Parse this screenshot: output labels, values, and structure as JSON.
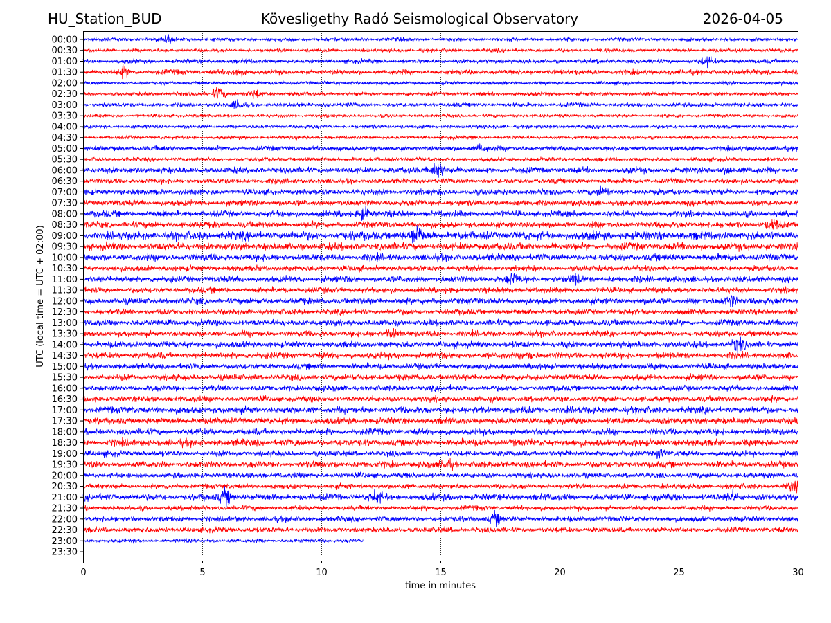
{
  "header": {
    "station": "HU_Station_BUD",
    "observatory": "Kövesligethy Radó Seismological Observatory",
    "date": "2026-04-05"
  },
  "chart_data": {
    "type": "line",
    "title": "Kövesligethy Radó Seismological Observatory",
    "xlabel": "time in minutes",
    "ylabel": "UTC (local time = UTC + 02:00)",
    "xlim": [
      0,
      30
    ],
    "xticks": [
      0,
      5,
      10,
      15,
      20,
      25,
      30
    ],
    "grid": "vertical dotted at x ticks",
    "colors": [
      "#0000ff",
      "#ff0000"
    ],
    "rows": [
      "00:00",
      "00:30",
      "01:00",
      "01:30",
      "02:00",
      "02:30",
      "03:00",
      "03:30",
      "04:00",
      "04:30",
      "05:00",
      "05:30",
      "06:00",
      "06:30",
      "07:00",
      "07:30",
      "08:00",
      "08:30",
      "09:00",
      "09:30",
      "10:00",
      "10:30",
      "11:00",
      "11:30",
      "12:00",
      "12:30",
      "13:00",
      "13:30",
      "14:00",
      "14:30",
      "15:00",
      "15:30",
      "16:00",
      "16:30",
      "17:00",
      "17:30",
      "18:00",
      "18:30",
      "19:00",
      "19:30",
      "20:00",
      "20:30",
      "21:00",
      "21:30",
      "22:00",
      "22:30",
      "23:00",
      "23:30"
    ],
    "noise_level": [
      1.2,
      1.2,
      1.5,
      1.8,
      1.2,
      1.3,
      1.4,
      1.1,
      1.3,
      1.2,
      1.6,
      1.4,
      2.2,
      1.8,
      2.0,
      2.0,
      2.2,
      2.3,
      3.0,
      2.6,
      2.4,
      2.0,
      2.3,
      2.0,
      2.2,
      1.9,
      2.1,
      2.1,
      2.3,
      2.2,
      2.0,
      2.1,
      2.0,
      2.1,
      2.4,
      2.2,
      2.2,
      2.5,
      2.0,
      2.2,
      1.8,
      1.8,
      2.4,
      1.7,
      1.8,
      1.8,
      1.3,
      0
    ],
    "end_minute": [
      30,
      30,
      30,
      30,
      30,
      30,
      30,
      30,
      30,
      30,
      30,
      30,
      30,
      30,
      30,
      30,
      30,
      30,
      30,
      30,
      30,
      30,
      30,
      30,
      30,
      30,
      30,
      30,
      30,
      30,
      30,
      30,
      30,
      30,
      30,
      30,
      30,
      30,
      30,
      30,
      30,
      30,
      30,
      30,
      30,
      30,
      11.75,
      0
    ],
    "events": [
      {
        "row": 0,
        "minute": 3.5,
        "amp": 2.5
      },
      {
        "row": 2,
        "minute": 26.2,
        "amp": 3
      },
      {
        "row": 3,
        "minute": 1.7,
        "amp": 3
      },
      {
        "row": 3,
        "minute": 6.5,
        "amp": 2.5
      },
      {
        "row": 5,
        "minute": 5.7,
        "amp": 5
      },
      {
        "row": 5,
        "minute": 7.2,
        "amp": 3
      },
      {
        "row": 6,
        "minute": 6.5,
        "amp": 3
      },
      {
        "row": 10,
        "minute": 16.7,
        "amp": 3
      },
      {
        "row": 12,
        "minute": 14.9,
        "amp": 6
      },
      {
        "row": 12,
        "minute": 27.1,
        "amp": 3
      },
      {
        "row": 14,
        "minute": 21.8,
        "amp": 3
      },
      {
        "row": 16,
        "minute": 11.8,
        "amp": 4
      },
      {
        "row": 17,
        "minute": 29.0,
        "amp": 3
      },
      {
        "row": 18,
        "minute": 14.0,
        "amp": 6
      },
      {
        "row": 22,
        "minute": 18.0,
        "amp": 3
      },
      {
        "row": 22,
        "minute": 20.7,
        "amp": 3
      },
      {
        "row": 24,
        "minute": 27.2,
        "amp": 4
      },
      {
        "row": 27,
        "minute": 13.0,
        "amp": 3
      },
      {
        "row": 28,
        "minute": 27.5,
        "amp": 4
      },
      {
        "row": 29,
        "minute": 18.7,
        "amp": 3
      },
      {
        "row": 38,
        "minute": 24.2,
        "amp": 3
      },
      {
        "row": 39,
        "minute": 15.3,
        "amp": 3
      },
      {
        "row": 41,
        "minute": 29.8,
        "amp": 3
      },
      {
        "row": 42,
        "minute": 6.0,
        "amp": 5
      },
      {
        "row": 42,
        "minute": 12.3,
        "amp": 4
      },
      {
        "row": 42,
        "minute": 27.2,
        "amp": 3
      },
      {
        "row": 44,
        "minute": 17.3,
        "amp": 4
      }
    ]
  }
}
